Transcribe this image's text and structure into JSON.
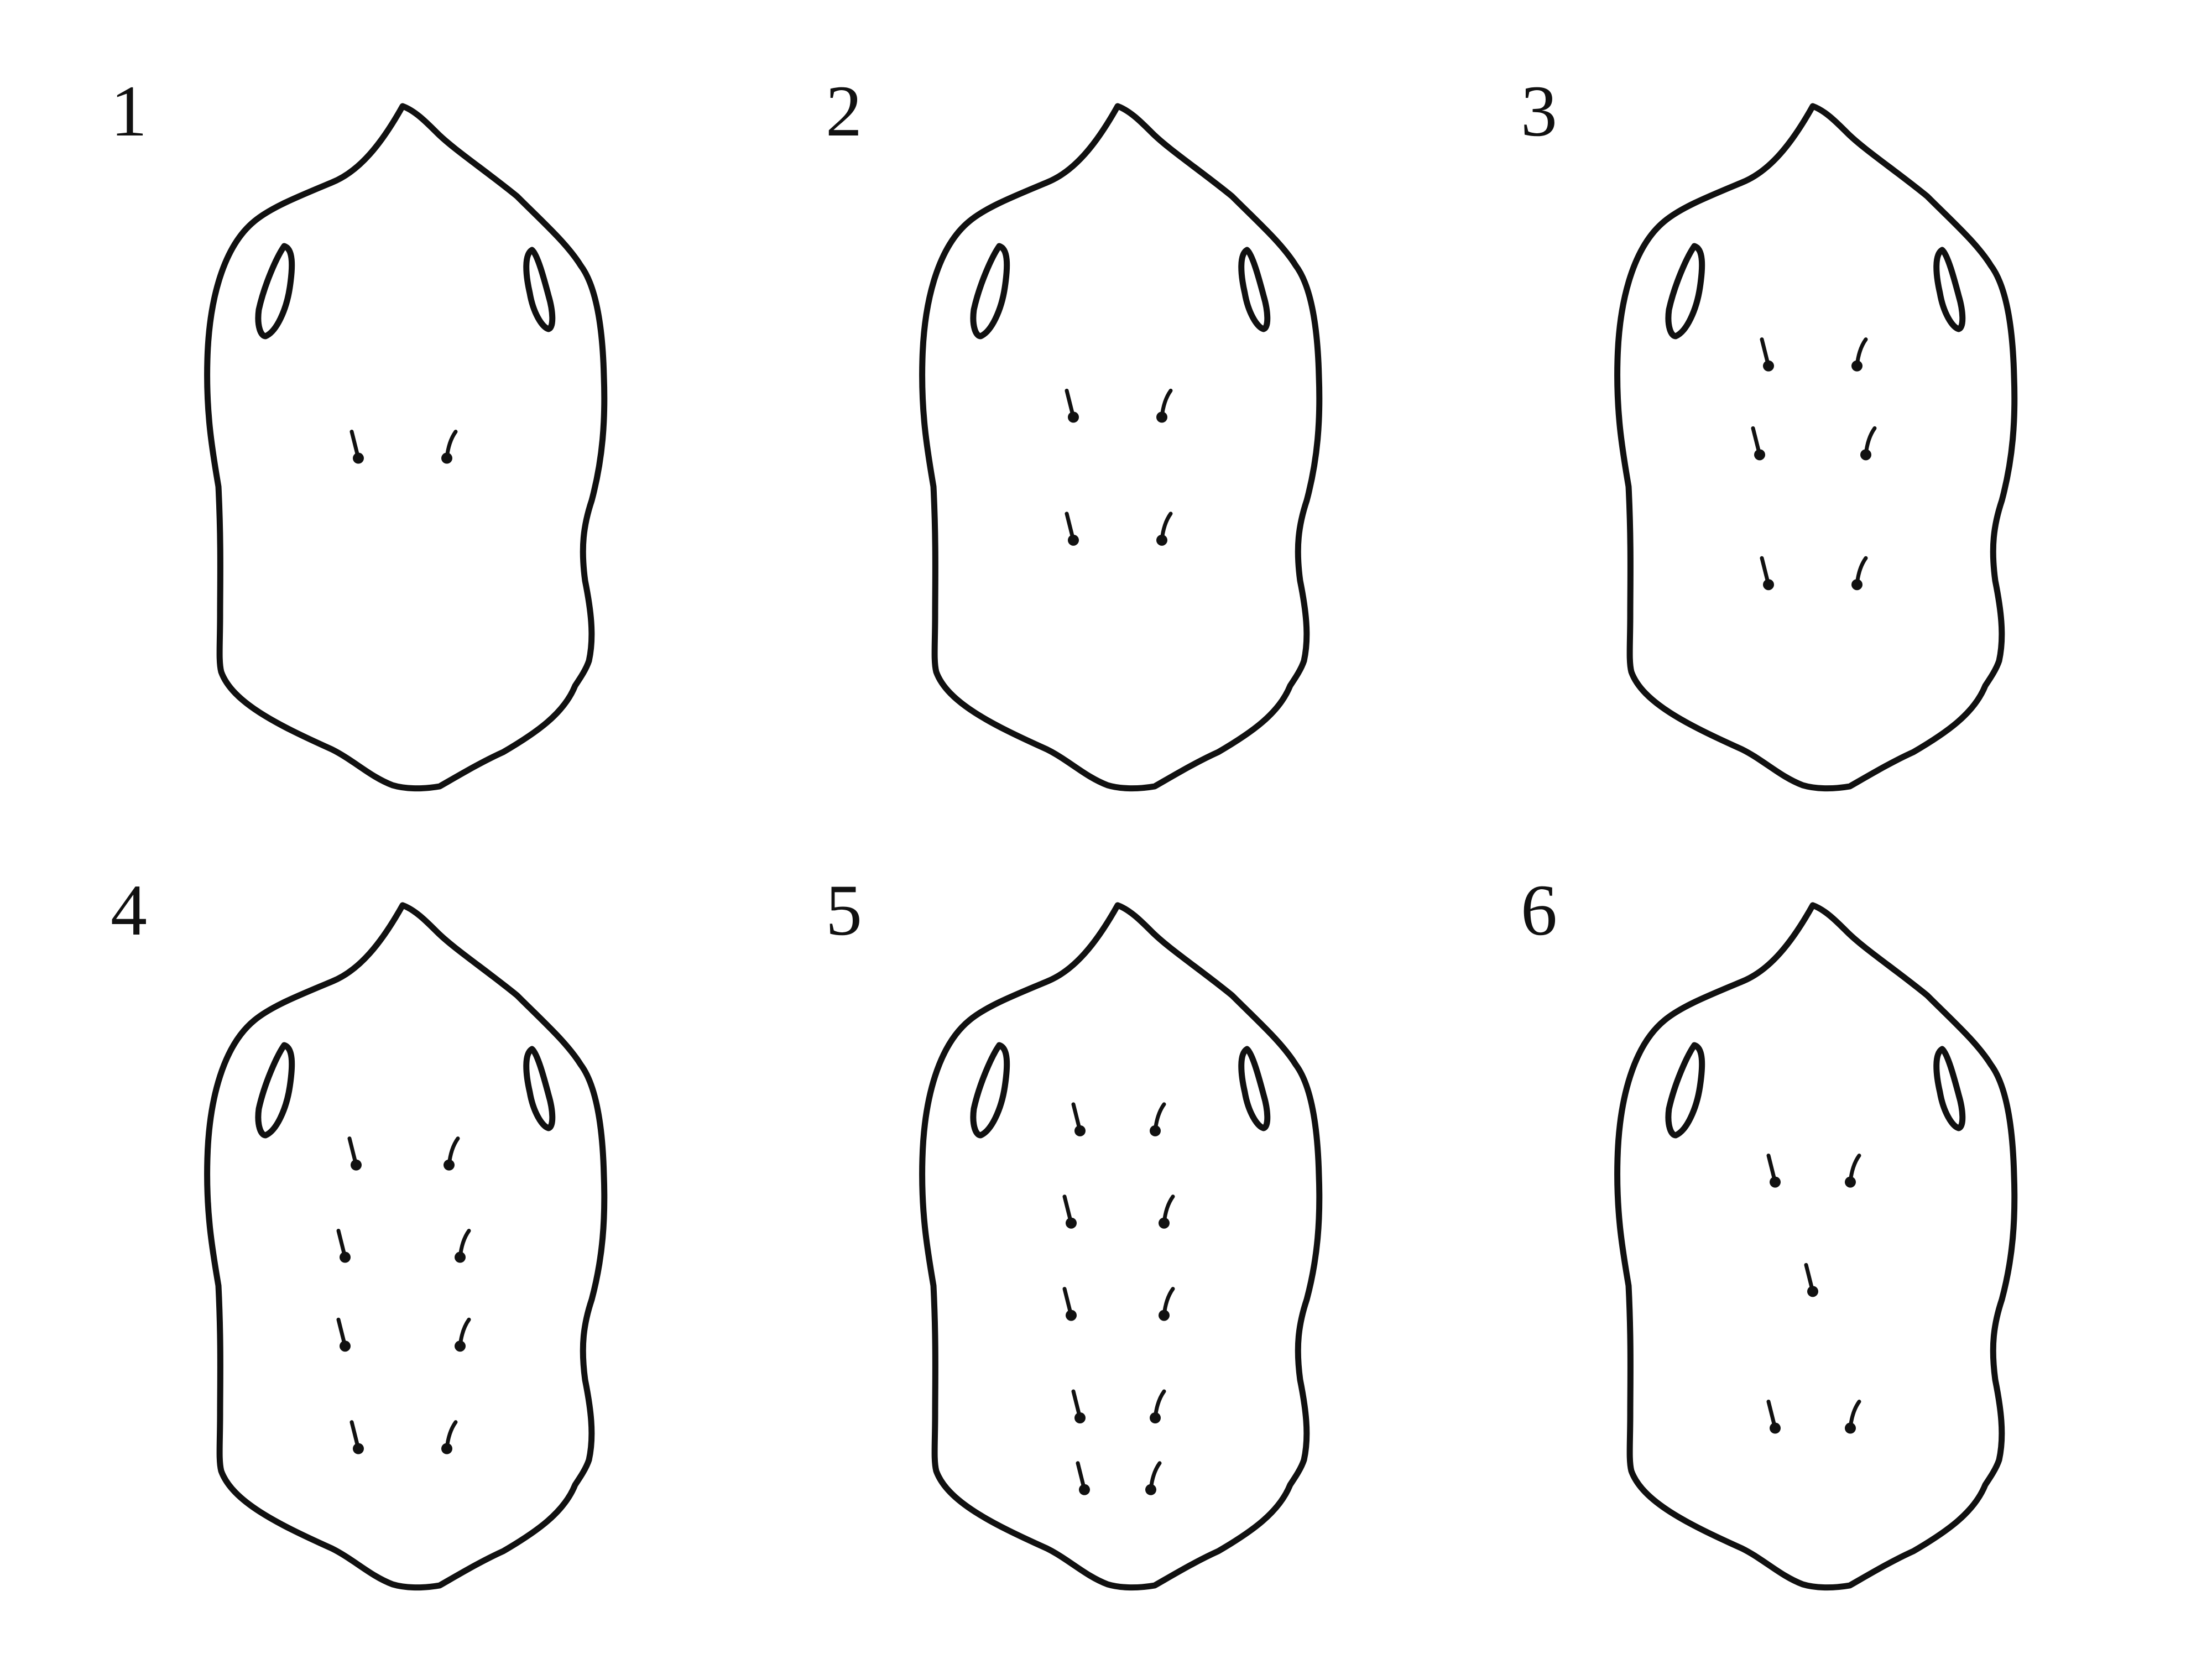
{
  "figure": {
    "panels": [
      {
        "number": "1",
        "setae": [
          [
            -1,
            0.515
          ],
          [
            1,
            0.515
          ]
        ]
      },
      {
        "number": "2",
        "setae": [
          [
            -1,
            0.455
          ],
          [
            1,
            0.455
          ],
          [
            -1,
            0.635
          ],
          [
            1,
            0.635
          ]
        ]
      },
      {
        "number": "3",
        "setae": [
          [
            -1,
            0.38
          ],
          [
            1,
            0.38
          ],
          [
            -1.2,
            0.51
          ],
          [
            1.2,
            0.51
          ],
          [
            -1,
            0.7
          ],
          [
            1,
            0.7
          ]
        ]
      },
      {
        "number": "4",
        "setae": [
          [
            -1.05,
            0.38
          ],
          [
            1.05,
            0.38
          ],
          [
            -1.3,
            0.515
          ],
          [
            1.3,
            0.515
          ],
          [
            -1.3,
            0.645
          ],
          [
            1.3,
            0.645
          ],
          [
            -1,
            0.795
          ],
          [
            1,
            0.795
          ]
        ]
      },
      {
        "number": "5",
        "setae": [
          [
            -0.85,
            0.33
          ],
          [
            0.85,
            0.33
          ],
          [
            -1.05,
            0.465
          ],
          [
            1.05,
            0.465
          ],
          [
            -1.05,
            0.6
          ],
          [
            1.05,
            0.6
          ],
          [
            -0.85,
            0.75
          ],
          [
            0.85,
            0.75
          ],
          [
            -0.75,
            0.855
          ],
          [
            0.75,
            0.855
          ]
        ]
      },
      {
        "number": "6",
        "setae": [
          [
            -0.85,
            0.405
          ],
          [
            0.85,
            0.405
          ],
          [
            0,
            0.565
          ],
          [
            -0.85,
            0.765
          ],
          [
            0.85,
            0.765
          ]
        ]
      }
    ]
  }
}
